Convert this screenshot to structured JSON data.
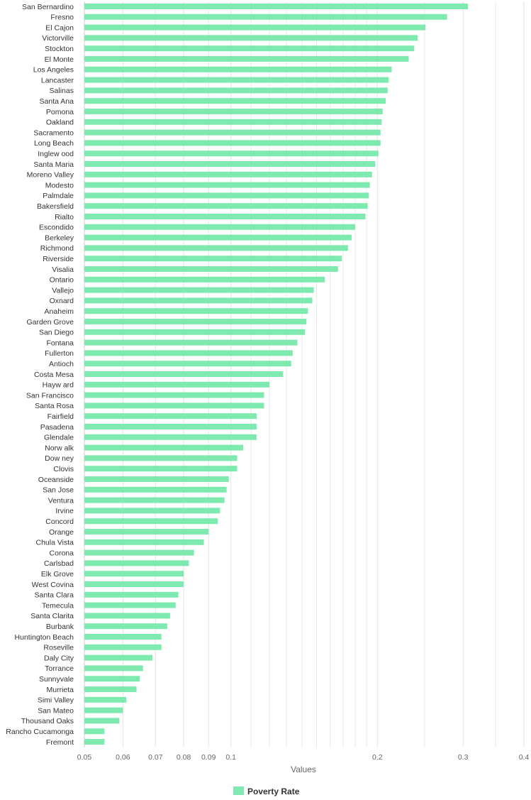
{
  "chart_data": {
    "type": "bar",
    "orientation": "horizontal",
    "x_scale": "log",
    "xlabel": "Values",
    "xlim": [
      0.05,
      0.4
    ],
    "x_ticks": [
      "0.05",
      "0.06",
      "0.07",
      "0.08",
      "0.09",
      "0.1",
      "0.2",
      "0.3",
      "0.4"
    ],
    "x_tick_values": [
      0.05,
      0.06,
      0.07,
      0.08,
      0.09,
      0.1,
      0.2,
      0.3,
      0.4
    ],
    "gridlines": true,
    "legend_position": "bottom-center",
    "color": "#7eeaaf",
    "series": [
      {
        "name": "Poverty Rate",
        "categories": [
          "San Bernardino",
          "Fresno",
          "El Cajon",
          "Victorville",
          "Stockton",
          "El Monte",
          "Los Angeles",
          "Lancaster",
          "Salinas",
          "Santa Ana",
          "Pomona",
          "Oakland",
          "Sacramento",
          "Long Beach",
          "Inglew ood",
          "Santa Maria",
          "Moreno Valley",
          "Modesto",
          "Palmdale",
          "Bakersfield",
          "Rialto",
          "Escondido",
          "Berkeley",
          "Richmond",
          "Riverside",
          "Visalia",
          "Ontario",
          "Vallejo",
          "Oxnard",
          "Anaheim",
          "Garden Grove",
          "San Diego",
          "Fontana",
          "Fullerton",
          "Antioch",
          "Costa Mesa",
          "Hayw ard",
          "San Francisco",
          "Santa Rosa",
          "Fairfield",
          "Pasadena",
          "Glendale",
          "Norw alk",
          "Dow ney",
          "Clovis",
          "Oceanside",
          "San Jose",
          "Ventura",
          "Irvine",
          "Concord",
          "Orange",
          "Chula Vista",
          "Corona",
          "Carlsbad",
          "Elk Grove",
          "West Covina",
          "Santa Clara",
          "Temecula",
          "Santa Clarita",
          "Burbank",
          "Huntington Beach",
          "Roseville",
          "Daly City",
          "Torrance",
          "Sunnyvale",
          "Murrieta",
          "Simi Valley",
          "San Mateo",
          "Thousand Oaks",
          "Rancho Cucamonga",
          "Fremont"
        ],
        "values": [
          0.307,
          0.278,
          0.251,
          0.242,
          0.238,
          0.232,
          0.214,
          0.211,
          0.21,
          0.208,
          0.205,
          0.204,
          0.203,
          0.203,
          0.201,
          0.198,
          0.195,
          0.193,
          0.192,
          0.191,
          0.189,
          0.18,
          0.177,
          0.174,
          0.169,
          0.166,
          0.156,
          0.148,
          0.147,
          0.144,
          0.143,
          0.142,
          0.137,
          0.134,
          0.133,
          0.128,
          0.12,
          0.117,
          0.117,
          0.113,
          0.113,
          0.113,
          0.106,
          0.103,
          0.103,
          0.099,
          0.098,
          0.097,
          0.095,
          0.094,
          0.09,
          0.088,
          0.084,
          0.082,
          0.08,
          0.08,
          0.078,
          0.077,
          0.075,
          0.074,
          0.072,
          0.072,
          0.069,
          0.066,
          0.065,
          0.064,
          0.061,
          0.06,
          0.059,
          0.055,
          0.055
        ]
      }
    ]
  }
}
